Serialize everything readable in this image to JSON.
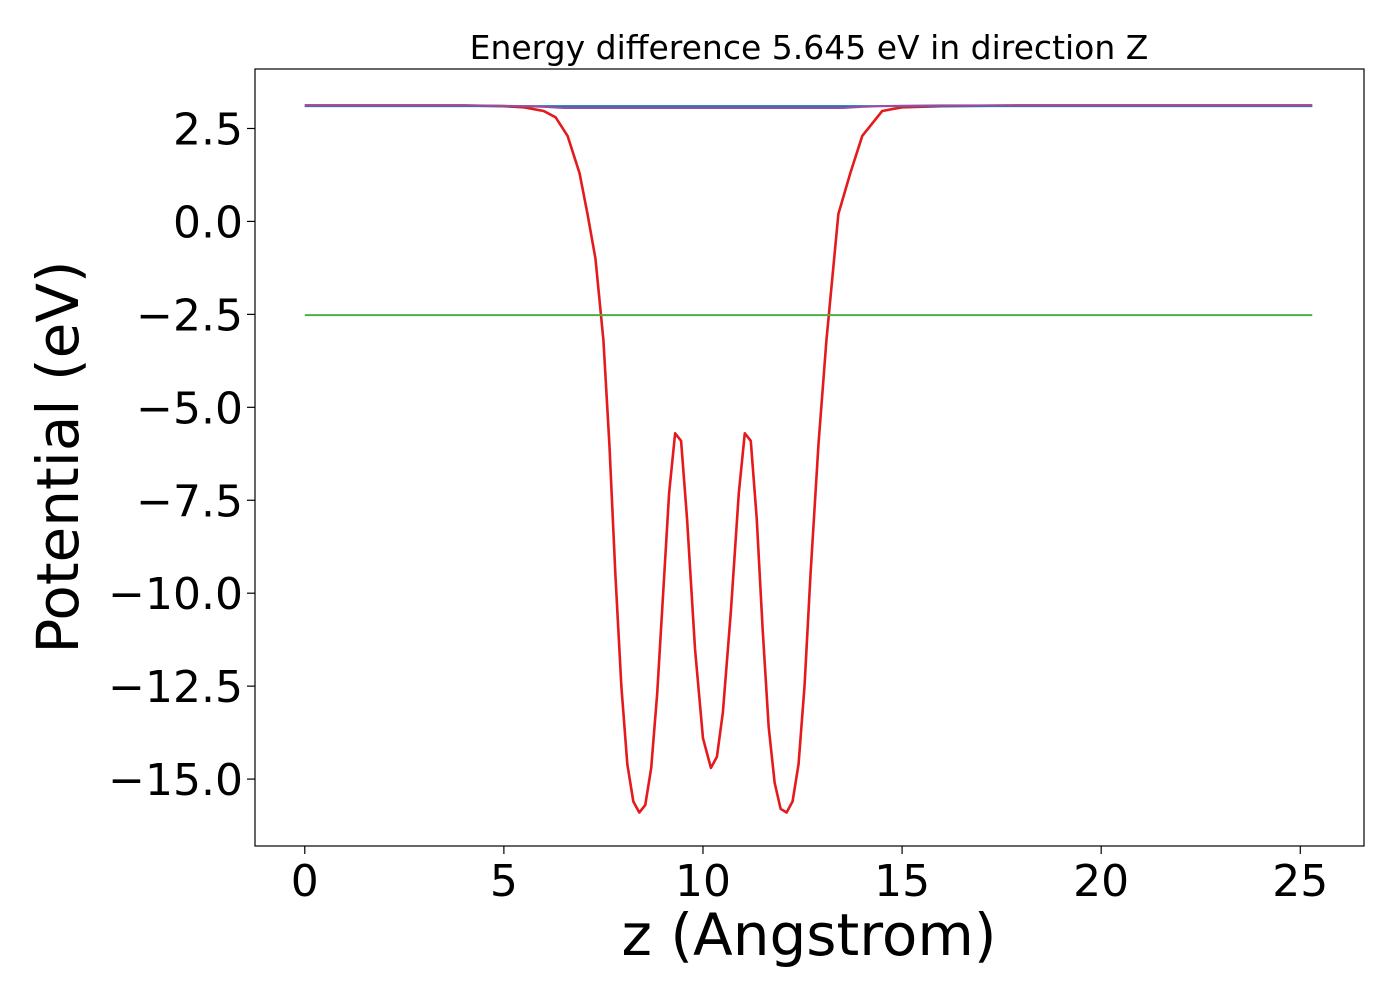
{
  "chart_data": {
    "type": "line",
    "title": "Energy difference 5.645 eV in direction Z",
    "xlabel": "z (Angstrom)",
    "ylabel": "Potential (eV)",
    "xlim": [
      -1.25,
      26.6
    ],
    "ylim": [
      -16.8,
      4.1
    ],
    "xticks": [
      0,
      5,
      10,
      15,
      20,
      25
    ],
    "xtick_labels": [
      "0",
      "5",
      "10",
      "15",
      "20",
      "25"
    ],
    "yticks": [
      2.5,
      0.0,
      -2.5,
      -5.0,
      -7.5,
      -10.0,
      -12.5,
      -15.0
    ],
    "ytick_labels": [
      "2.5",
      "0.0",
      "−2.5",
      "−5.0",
      "−7.5",
      "−10.0",
      "−12.5",
      "−15.0"
    ],
    "grid": false,
    "series": [
      {
        "color": "#e41a1c",
        "x": [
          0,
          2,
          4,
          5,
          5.5,
          6,
          6.3,
          6.6,
          6.9,
          7.1,
          7.3,
          7.5,
          7.65,
          7.8,
          7.95,
          8.1,
          8.25,
          8.4,
          8.55,
          8.7,
          8.85,
          9.0,
          9.15,
          9.3,
          9.45,
          9.6,
          9.8,
          10.0,
          10.2,
          10.35,
          10.5,
          10.7,
          10.9,
          11.05,
          11.2,
          11.35,
          11.5,
          11.65,
          11.8,
          11.95,
          12.1,
          12.25,
          12.4,
          12.55,
          12.7,
          12.9,
          13.1,
          13.4,
          13.7,
          14.0,
          14.5,
          15.0,
          16,
          18,
          20,
          22,
          24,
          25.3
        ],
        "y": [
          3.12,
          3.12,
          3.12,
          3.1,
          3.07,
          2.97,
          2.8,
          2.3,
          1.3,
          0.2,
          -1.0,
          -3.2,
          -6.0,
          -9.5,
          -12.5,
          -14.6,
          -15.6,
          -15.9,
          -15.7,
          -14.7,
          -12.7,
          -10.0,
          -7.3,
          -5.7,
          -5.9,
          -8.0,
          -11.5,
          -13.9,
          -14.7,
          -14.4,
          -13.2,
          -10.5,
          -7.3,
          -5.7,
          -5.9,
          -8.0,
          -11.0,
          -13.6,
          -15.1,
          -15.8,
          -15.9,
          -15.6,
          -14.6,
          -12.5,
          -9.5,
          -6.0,
          -3.2,
          0.2,
          1.3,
          2.3,
          2.97,
          3.07,
          3.1,
          3.12,
          3.12,
          3.12,
          3.12,
          3.12
        ]
      },
      {
        "color": "#1f77b4",
        "x": [
          0,
          25.3
        ],
        "y": [
          3.1,
          3.1
        ]
      },
      {
        "color": "#4daf4a",
        "x": [
          0,
          25.3
        ],
        "y": [
          -2.52,
          -2.52
        ]
      },
      {
        "color": "#984ea3",
        "x": [
          0,
          2,
          4,
          5,
          5.5,
          6,
          6.5,
          13.5,
          14,
          14.5,
          15,
          16,
          18,
          20,
          22,
          24,
          25.3
        ],
        "y": [
          3.12,
          3.12,
          3.12,
          3.11,
          3.1,
          3.08,
          3.05,
          3.05,
          3.08,
          3.1,
          3.11,
          3.12,
          3.12,
          3.12,
          3.12,
          3.12,
          3.12
        ]
      }
    ]
  }
}
